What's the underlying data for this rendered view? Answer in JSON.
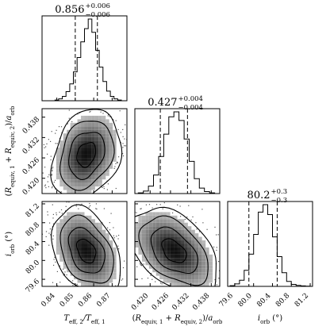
{
  "chart_data": {
    "type": "corner",
    "parameters": [
      {
        "key": "teff_ratio",
        "label": "T_eff,2/T_eff,1",
        "label_parts": {
          "main": "T",
          "sub1": "eff, 2",
          "mid": "/T",
          "sub2": "eff, 1"
        },
        "median": 0.856,
        "plus": 0.006,
        "minus": 0.006,
        "title_value": "0.856",
        "title_plus": "+0.006",
        "title_minus": "−0.006",
        "lim": [
          0.832,
          0.878
        ],
        "ticks": [
          0.84,
          0.85,
          0.86,
          0.87
        ],
        "tick_labels": [
          "0.84",
          "0.85",
          "0.86",
          "0.87"
        ]
      },
      {
        "key": "sum_radii",
        "label": "(R_equiv,1 + R_equiv,2)/a_orb",
        "label_parts": {
          "open": "(R",
          "sub1": "equiv, 1",
          "mid": " + R",
          "sub2": "equiv, 2",
          "close": ")/a",
          "sub3": "orb"
        },
        "median": 0.427,
        "plus": 0.004,
        "minus": 0.004,
        "title_value": "0.427",
        "title_plus": "+0.004",
        "title_minus": "−0.004",
        "lim": [
          0.4155,
          0.4405
        ],
        "ticks": [
          0.42,
          0.426,
          0.432,
          0.438
        ],
        "tick_labels": [
          "0.420",
          "0.426",
          "0.432",
          "0.438"
        ]
      },
      {
        "key": "inclination",
        "label": "i_orb (°)",
        "label_parts": {
          "main": "i",
          "sub1": "orb",
          "unit": " (°)"
        },
        "median": 80.2,
        "plus": 0.3,
        "minus": 0.3,
        "title_value": "80.2",
        "title_plus": "+0.3",
        "title_minus": "−0.3",
        "lim": [
          79.45,
          81.25
        ],
        "ticks": [
          79.6,
          80.0,
          80.4,
          80.8,
          81.2
        ],
        "tick_labels": [
          "79.6",
          "80.0",
          "80.4",
          "80.8",
          "81.2"
        ]
      }
    ],
    "marginals": [
      {
        "param": 0,
        "bin_edges": [
          0.839,
          0.841,
          0.843,
          0.845,
          0.847,
          0.849,
          0.851,
          0.853,
          0.855,
          0.857,
          0.859,
          0.861,
          0.863,
          0.865,
          0.867,
          0.869,
          0.871,
          0.873,
          0.875
        ],
        "counts": [
          3,
          8,
          18,
          38,
          70,
          120,
          180,
          245,
          300,
          340,
          285,
          210,
          140,
          80,
          40,
          18,
          8,
          3
        ],
        "quantiles": [
          0.85,
          0.856,
          0.862
        ]
      },
      {
        "param": 1,
        "bin_edges": [
          0.4165,
          0.418,
          0.4195,
          0.421,
          0.4225,
          0.424,
          0.4255,
          0.427,
          0.4285,
          0.43,
          0.4315,
          0.433,
          0.4345,
          0.436,
          0.4375,
          0.439
        ],
        "counts": [
          3,
          10,
          30,
          75,
          150,
          240,
          310,
          330,
          295,
          220,
          130,
          60,
          22,
          8,
          3
        ],
        "quantiles": [
          0.423,
          0.427,
          0.431
        ]
      },
      {
        "param": 2,
        "bin_edges": [
          79.5,
          79.6,
          79.7,
          79.8,
          79.9,
          80.0,
          80.1,
          80.2,
          80.3,
          80.4,
          80.5,
          80.6,
          80.7,
          80.8,
          80.9,
          81.0,
          81.1,
          81.2
        ],
        "counts": [
          3,
          10,
          25,
          65,
          130,
          210,
          300,
          330,
          290,
          200,
          120,
          55,
          20,
          8,
          4,
          2,
          1
        ],
        "quantiles": [
          79.9,
          80.2,
          80.5
        ]
      }
    ],
    "pairs": [
      {
        "x": 0,
        "y": 1,
        "center": [
          0.856,
          0.427
        ],
        "spread": [
          0.0085,
          0.006
        ],
        "corr": 0.25
      },
      {
        "x": 0,
        "y": 2,
        "center": [
          0.856,
          80.2
        ],
        "spread": [
          0.0085,
          0.42
        ],
        "corr": -0.35
      },
      {
        "x": 1,
        "y": 2,
        "center": [
          0.427,
          80.2
        ],
        "spread": [
          0.006,
          0.42
        ],
        "corr": -0.45
      }
    ]
  }
}
